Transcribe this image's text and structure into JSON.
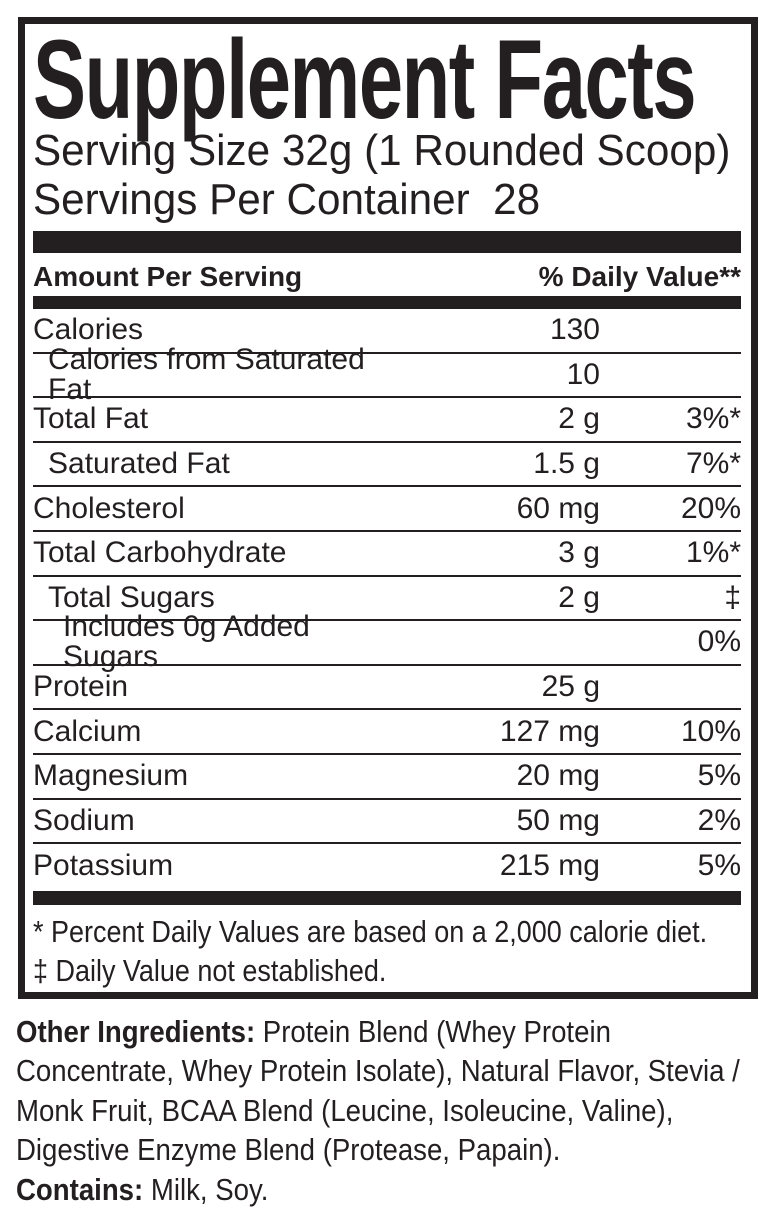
{
  "panel": {
    "title": "Supplement Facts",
    "serving_size_line": "Serving Size 32g (1 Rounded Scoop)",
    "servings_per_container_line": "Servings Per Container  28",
    "column_header": {
      "left": "Amount Per Serving",
      "right": "% Daily Value**"
    },
    "rows": [
      {
        "label": "Calories",
        "amount": "130",
        "dv": "",
        "indent": 0
      },
      {
        "label": "Calories from Saturated Fat",
        "amount": "10",
        "dv": "",
        "indent": 1
      },
      {
        "label": "Total Fat",
        "amount": "2 g",
        "dv": "3%*",
        "indent": 0
      },
      {
        "label": "Saturated Fat",
        "amount": "1.5 g",
        "dv": "7%*",
        "indent": 1
      },
      {
        "label": "Cholesterol",
        "amount": "60 mg",
        "dv": "20%",
        "indent": 0
      },
      {
        "label": "Total Carbohydrate",
        "amount": "3 g",
        "dv": "1%*",
        "indent": 0
      },
      {
        "label": "Total Sugars",
        "amount": "2 g",
        "dv": "‡",
        "indent": 1
      },
      {
        "label": "Includes 0g Added Sugars",
        "amount": "",
        "dv": "0%",
        "indent": 2
      },
      {
        "label": "Protein",
        "amount": "25 g",
        "dv": "",
        "indent": 0
      },
      {
        "label": "Calcium",
        "amount": "127 mg",
        "dv": "10%",
        "indent": 0
      },
      {
        "label": "Magnesium",
        "amount": "20 mg",
        "dv": "5%",
        "indent": 0
      },
      {
        "label": "Sodium",
        "amount": "50 mg",
        "dv": "2%",
        "indent": 0
      },
      {
        "label": "Potassium",
        "amount": "215 mg",
        "dv": "5%",
        "indent": 0
      }
    ],
    "footnotes": [
      "* Percent Daily Values are based on a 2,000 calorie diet.",
      "‡ Daily Value not established."
    ]
  },
  "below": {
    "other_ingredients_label": "Other Ingredients:",
    "other_ingredients_text": " Protein Blend (Whey Protein Concentrate, Whey Protein Isolate), Natural Flavor, Stevia / Monk Fruit, BCAA Blend (Leucine, Isoleucine, Valine), Digestive Enzyme Blend (Protease, Papain).",
    "contains_label": "Contains:",
    "contains_text": " Milk, Soy."
  },
  "colors": {
    "ink": "#231f20",
    "background": "#ffffff"
  }
}
